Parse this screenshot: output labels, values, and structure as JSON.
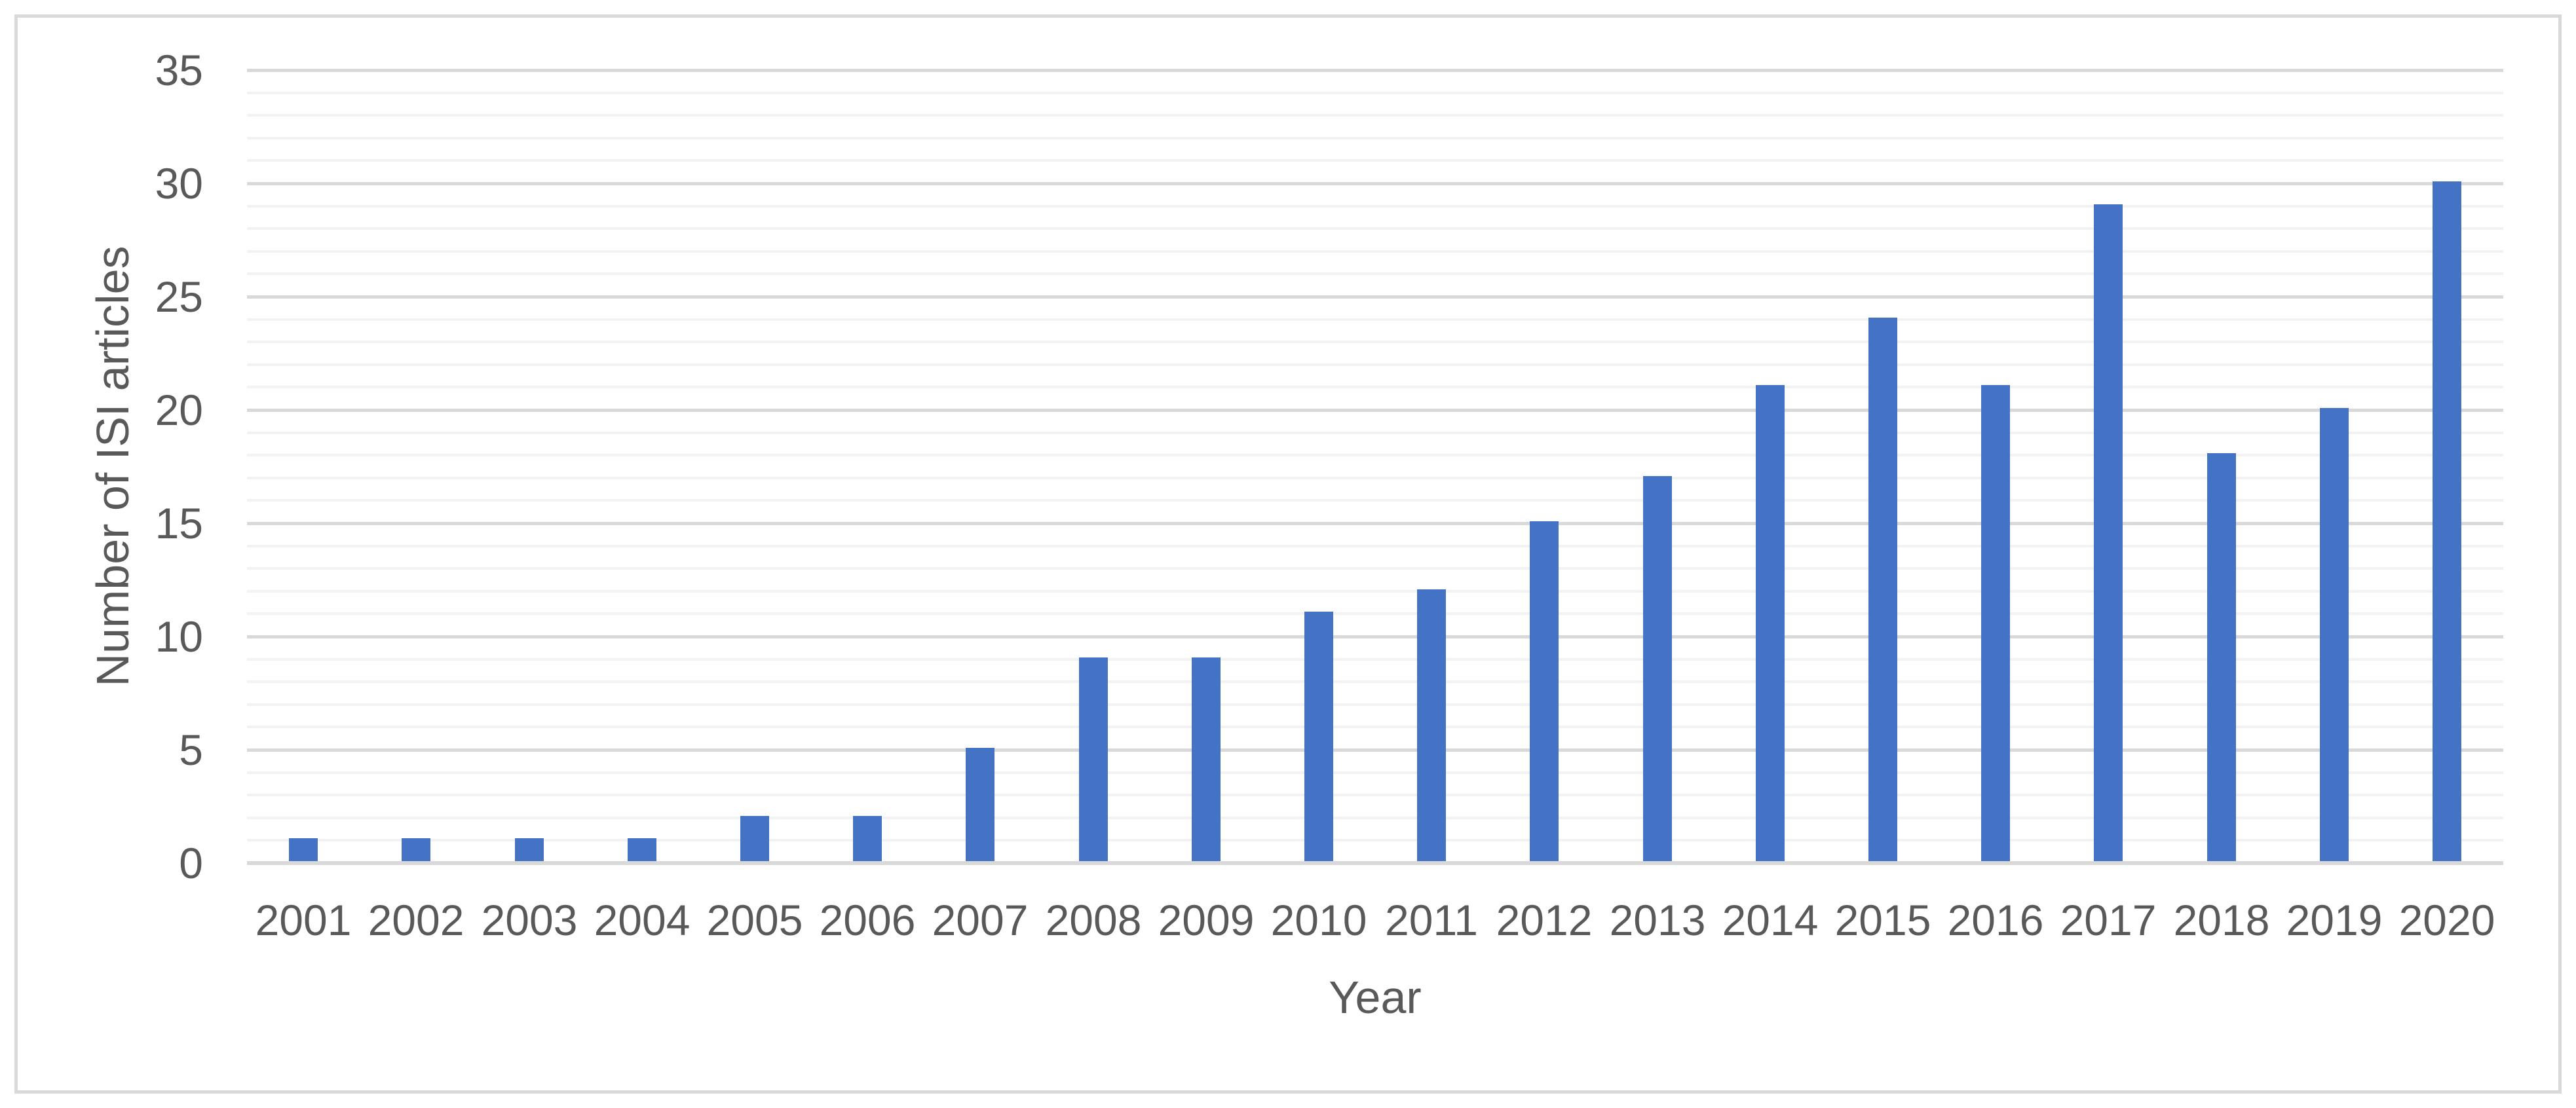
{
  "chart_data": {
    "type": "bar",
    "title": "",
    "xlabel": "Year",
    "ylabel": "Number of ISI articles",
    "categories": [
      "2001",
      "2002",
      "2003",
      "2004",
      "2005",
      "2006",
      "2007",
      "2008",
      "2009",
      "2010",
      "2011",
      "2012",
      "2013",
      "2014",
      "2015",
      "2016",
      "2017",
      "2018",
      "2019",
      "2020"
    ],
    "values": [
      1,
      1,
      1,
      1,
      2,
      2,
      5,
      9,
      9,
      11,
      12,
      15,
      17,
      21,
      24,
      21,
      29,
      18,
      20,
      30
    ],
    "ylim": [
      0,
      35
    ],
    "y_major_ticks": [
      "0",
      "5",
      "10",
      "15",
      "20",
      "25",
      "30",
      "35"
    ],
    "y_major_step": 5,
    "y_minor_step": 1,
    "grid": {
      "horizontal_major": true,
      "horizontal_minor": true,
      "vertical": false
    },
    "legend": "none",
    "colors": {
      "bar": "#4472C4",
      "major_gridline": "#D9D9D9",
      "minor_gridline": "#F2F2F2",
      "axis_line": "#D9D9D9",
      "text": "#595959",
      "frame_border": "#D9D9D9",
      "background": "#FFFFFF"
    }
  }
}
